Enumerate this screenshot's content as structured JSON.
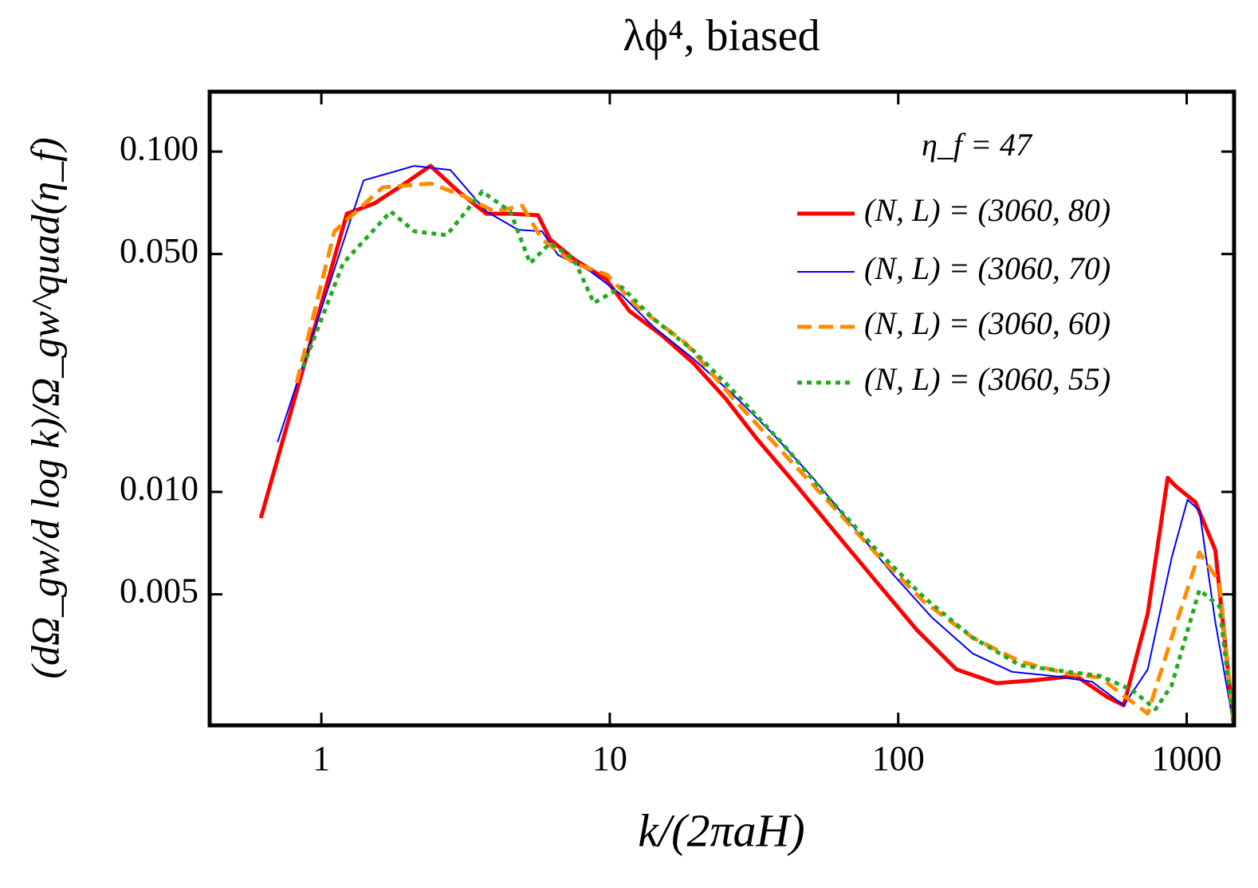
{
  "chart_data": {
    "type": "line",
    "title": "λϕ⁴, biased",
    "x_label": "k/(2πaH)",
    "y_label": "(dΩ_gw/d log k)/Ω_gw^quad(η_f)",
    "legend_title": "η_f = 47",
    "legend_position": "upper right",
    "xscale": "log",
    "yscale": "log",
    "xlim": [
      0.41,
      1460
    ],
    "ylim": [
      0.00206,
      0.15
    ],
    "xticks": [
      1,
      10,
      100,
      1000
    ],
    "yticks": [
      0.005,
      {
        "value": 0.01,
        "label": "0.010"
      },
      {
        "value": 0.05,
        "label": "0.050"
      },
      {
        "value": 0.1,
        "label": "0.100"
      }
    ],
    "series": [
      {
        "name": "(N, L) = (3060, 80)",
        "color": "#ff0000",
        "line_style": "solid",
        "line_width": 5,
        "x": [
          0.617,
          1.226,
          1.53,
          1.91,
          2.39,
          2.99,
          3.73,
          4.52,
          5.64,
          6.21,
          7.51,
          9.69,
          11.7,
          15.1,
          19.5,
          25.2,
          32.4,
          44.6,
          61.2,
          84.2,
          116,
          159,
          219,
          301,
          413,
          533,
          605,
          733,
          859,
          915,
          1072,
          1256,
          1455
        ],
        "values": [
          0.00838,
          0.0657,
          0.0705,
          0.0797,
          0.0908,
          0.0763,
          0.0657,
          0.0657,
          0.065,
          0.0552,
          0.0483,
          0.0422,
          0.034,
          0.0289,
          0.0239,
          0.0188,
          0.0143,
          0.0104,
          0.00751,
          0.00543,
          0.00393,
          0.00301,
          0.00274,
          0.0028,
          0.00288,
          0.00249,
          0.00236,
          0.00439,
          0.011,
          0.0104,
          0.00933,
          0.00675,
          0.00206
        ]
      },
      {
        "name": "(N, L) = (3060, 70)",
        "color": "#0000ff",
        "line_style": "solid",
        "line_width": 2,
        "x": [
          0.705,
          1.4,
          2.1,
          2.8,
          3.73,
          4.81,
          5.82,
          6.61,
          8.53,
          11.0,
          14.2,
          19.5,
          26.8,
          36.8,
          50.6,
          69.6,
          95.6,
          131,
          181,
          248,
          341,
          469,
          605,
          733,
          887,
          1007,
          1107,
          1256,
          1455
        ],
        "values": [
          0.014,
          0.0823,
          0.0908,
          0.0883,
          0.0667,
          0.0589,
          0.0583,
          0.0497,
          0.0446,
          0.0379,
          0.0305,
          0.0246,
          0.0193,
          0.0148,
          0.011,
          0.00793,
          0.00574,
          0.00427,
          0.00335,
          0.00296,
          0.00288,
          0.00277,
          0.00236,
          0.00301,
          0.0064,
          0.00948,
          0.00883,
          0.00415,
          0.00206
        ]
      },
      {
        "name": "(N, L) = (3060, 60)",
        "color": "#ff8c00",
        "line_style": "dashed",
        "line_width": 5,
        "x": [
          0.821,
          1.11,
          1.63,
          2.39,
          3.08,
          3.98,
          4.97,
          5.82,
          7.51,
          9.81,
          12.5,
          18.3,
          26.8,
          39.3,
          57.5,
          84.2,
          123,
          181,
          265,
          388,
          500,
          645,
          733,
          887,
          1107,
          1298,
          1455
        ],
        "values": [
          0.0209,
          0.0583,
          0.0785,
          0.0806,
          0.0743,
          0.0667,
          0.0693,
          0.0552,
          0.047,
          0.0434,
          0.0349,
          0.0274,
          0.0188,
          0.0132,
          0.00933,
          0.00656,
          0.00475,
          0.00373,
          0.00317,
          0.00292,
          0.00285,
          0.00242,
          0.00223,
          0.00373,
          0.00664,
          0.00543,
          0.00206
        ]
      },
      {
        "name": "(N, L) = (3060, 55)",
        "color": "#22aa22",
        "line_style": "dotted",
        "line_width": 5,
        "x": [
          0.864,
          1.19,
          1.74,
          2.1,
          2.72,
          3.61,
          4.52,
          5.29,
          6.21,
          7.51,
          8.81,
          11.0,
          14.2,
          19.5,
          26.8,
          39.3,
          57.5,
          84.2,
          123,
          181,
          265,
          388,
          500,
          645,
          780,
          887,
          1107,
          1298,
          1455
        ],
        "values": [
          0.0233,
          0.047,
          0.0667,
          0.0583,
          0.0568,
          0.0763,
          0.0667,
          0.047,
          0.0538,
          0.0483,
          0.0359,
          0.04,
          0.0322,
          0.026,
          0.0198,
          0.014,
          0.00957,
          0.00675,
          0.00489,
          0.00373,
          0.00309,
          0.00296,
          0.00288,
          0.00262,
          0.0023,
          0.0027,
          0.00515,
          0.00462,
          0.00206
        ]
      }
    ]
  }
}
